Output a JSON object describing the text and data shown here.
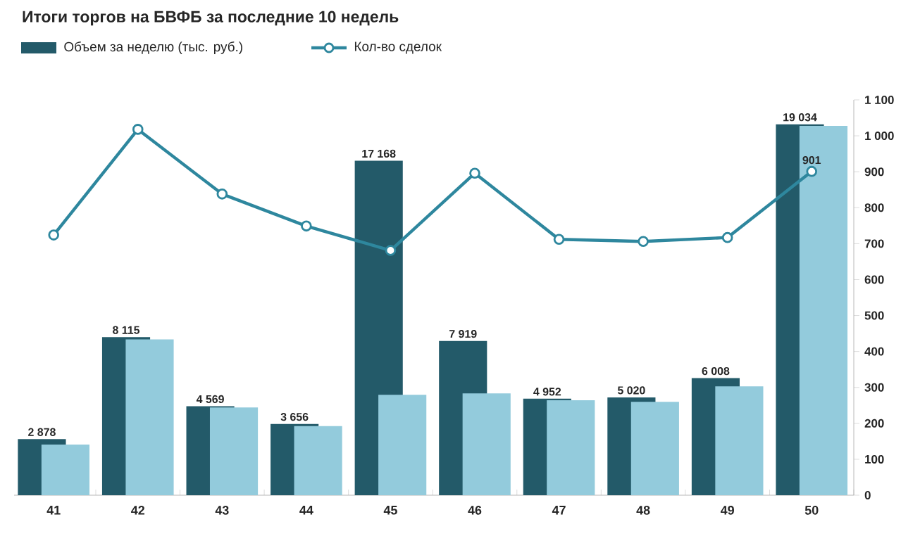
{
  "chart_data": {
    "type": "bar",
    "title": "Итоги торгов на БВФБ за последние 10 недель",
    "categories": [
      "41",
      "42",
      "43",
      "44",
      "45",
      "46",
      "47",
      "48",
      "49",
      "50"
    ],
    "series": [
      {
        "name": "Объем за неделю (тыс. руб.)",
        "color": "#235a69",
        "values": [
          2878,
          8115,
          4569,
          3656,
          17168,
          7919,
          4952,
          5020,
          6008,
          19034
        ],
        "value_labels": [
          "2 878",
          "8 115",
          "4 569",
          "3 656",
          "17 168",
          "7 919",
          "4 952",
          "5 020",
          "6 008",
          "19 034"
        ]
      },
      {
        "color": "#93cbdc",
        "values": [
          2600,
          8000,
          4500,
          3550,
          5150,
          5230,
          4870,
          4790,
          5590,
          18950
        ]
      },
      {
        "name": "Кол-во сделок",
        "type": "line",
        "axis": "y2",
        "color": "#2e879e",
        "marker": "circle",
        "values": [
          724,
          1018,
          838,
          749,
          681,
          896,
          712,
          706,
          717,
          901
        ],
        "value_labels": [
          null,
          null,
          null,
          null,
          null,
          null,
          null,
          null,
          null,
          "901"
        ]
      }
    ],
    "y2lim": [
      0,
      1100
    ],
    "y2ticks": [
      0,
      100,
      200,
      300,
      400,
      500,
      600,
      700,
      800,
      900,
      {
        "value": 1000,
        "label": "1 000"
      },
      {
        "value": 1100,
        "label": "1 100"
      }
    ],
    "legend": "top left",
    "grid": false
  }
}
